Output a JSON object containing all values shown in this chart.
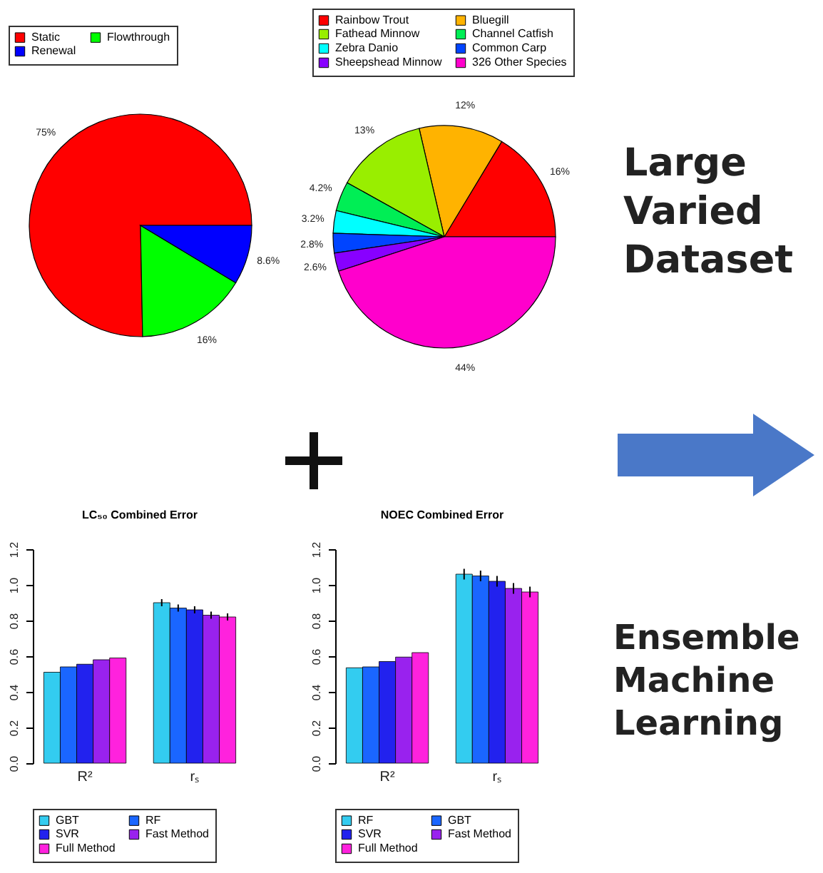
{
  "chart_data": [
    {
      "type": "pie",
      "categories": [
        "Static",
        "Flowthrough",
        "Renewal"
      ],
      "values": [
        75,
        16,
        8.6
      ],
      "colors": [
        "#ff0000",
        "#00ff00",
        "#0000ff"
      ],
      "value_labels": [
        "75%",
        "16%",
        "8.6%"
      ],
      "legend": "top"
    },
    {
      "type": "pie",
      "categories": [
        "Rainbow Trout",
        "Bluegill",
        "Fathead Minnow",
        "Channel Catfish",
        "Zebra Danio",
        "Common Carp",
        "Sheepshead Minnow",
        "326 Other Species"
      ],
      "values": [
        16,
        12,
        13,
        4.2,
        3.2,
        2.8,
        2.6,
        44
      ],
      "colors": [
        "#ff0000",
        "#ffb300",
        "#99ee00",
        "#00ee55",
        "#00ffff",
        "#0044ff",
        "#8800ff",
        "#ff00cc"
      ],
      "value_labels": [
        "16%",
        "12%",
        "13%",
        "4.2%",
        "3.2%",
        "2.8%",
        "2.6%",
        "44%"
      ],
      "legend": "top"
    },
    {
      "type": "bar",
      "title": "LC₅₀ Combined Error",
      "categories": [
        "R²",
        "rₛ"
      ],
      "ylim": [
        0,
        1.2
      ],
      "yticks": [
        {
          "value": 0,
          "label": "0.0"
        },
        {
          "value": 0.2,
          "label": "0.2"
        },
        {
          "value": 0.4,
          "label": "0.4"
        },
        {
          "value": 0.6,
          "label": "0.6"
        },
        {
          "value": 0.8,
          "label": "0.8"
        },
        {
          "value": 1,
          "label": "1.0"
        },
        {
          "value": 1.2,
          "label": "1.2"
        }
      ],
      "grid": false,
      "legend": "bottom",
      "series": [
        {
          "name": "GBT",
          "color": "#33ccf0",
          "values": [
            0.51,
            0.9
          ],
          "errors": [
            null,
            0.02
          ]
        },
        {
          "name": "RF",
          "color": "#1a66ff",
          "values": [
            0.54,
            0.87
          ],
          "errors": [
            null,
            0.02
          ]
        },
        {
          "name": "SVR",
          "color": "#2222ee",
          "values": [
            0.555,
            0.86
          ],
          "errors": [
            null,
            0.02
          ]
        },
        {
          "name": "Fast Method",
          "color": "#9922ee",
          "values": [
            0.58,
            0.83
          ],
          "errors": [
            null,
            0.02
          ]
        },
        {
          "name": "Full Method",
          "color": "#ff22dd",
          "values": [
            0.59,
            0.82
          ],
          "errors": [
            null,
            0.02
          ]
        }
      ]
    },
    {
      "type": "bar",
      "title": "NOEC Combined Error",
      "categories": [
        "R²",
        "rₛ"
      ],
      "ylim": [
        0,
        1.2
      ],
      "yticks": [
        {
          "value": 0,
          "label": "0.0"
        },
        {
          "value": 0.2,
          "label": "0.2"
        },
        {
          "value": 0.4,
          "label": "0.4"
        },
        {
          "value": 0.6,
          "label": "0.6"
        },
        {
          "value": 0.8,
          "label": "0.8"
        },
        {
          "value": 1,
          "label": "1.0"
        },
        {
          "value": 1.2,
          "label": "1.2"
        }
      ],
      "grid": false,
      "legend": "bottom",
      "series": [
        {
          "name": "RF",
          "color": "#33ccf0",
          "values": [
            0.535,
            1.06
          ],
          "errors": [
            null,
            0.03
          ]
        },
        {
          "name": "GBT",
          "color": "#1a66ff",
          "values": [
            0.54,
            1.05
          ],
          "errors": [
            null,
            0.03
          ]
        },
        {
          "name": "SVR",
          "color": "#2222ee",
          "values": [
            0.57,
            1.02
          ],
          "errors": [
            null,
            0.03
          ]
        },
        {
          "name": "Fast Method",
          "color": "#9922ee",
          "values": [
            0.595,
            0.98
          ],
          "errors": [
            null,
            0.03
          ]
        },
        {
          "name": "Full Method",
          "color": "#ff22dd",
          "values": [
            0.62,
            0.96
          ],
          "errors": [
            null,
            0.03
          ]
        }
      ]
    },
    {
      "type": "other",
      "annotations": [
        "Large Varied Dataset"
      ]
    },
    {
      "type": "other",
      "annotations": [
        "Ensemble Machine Learning"
      ]
    }
  ]
}
